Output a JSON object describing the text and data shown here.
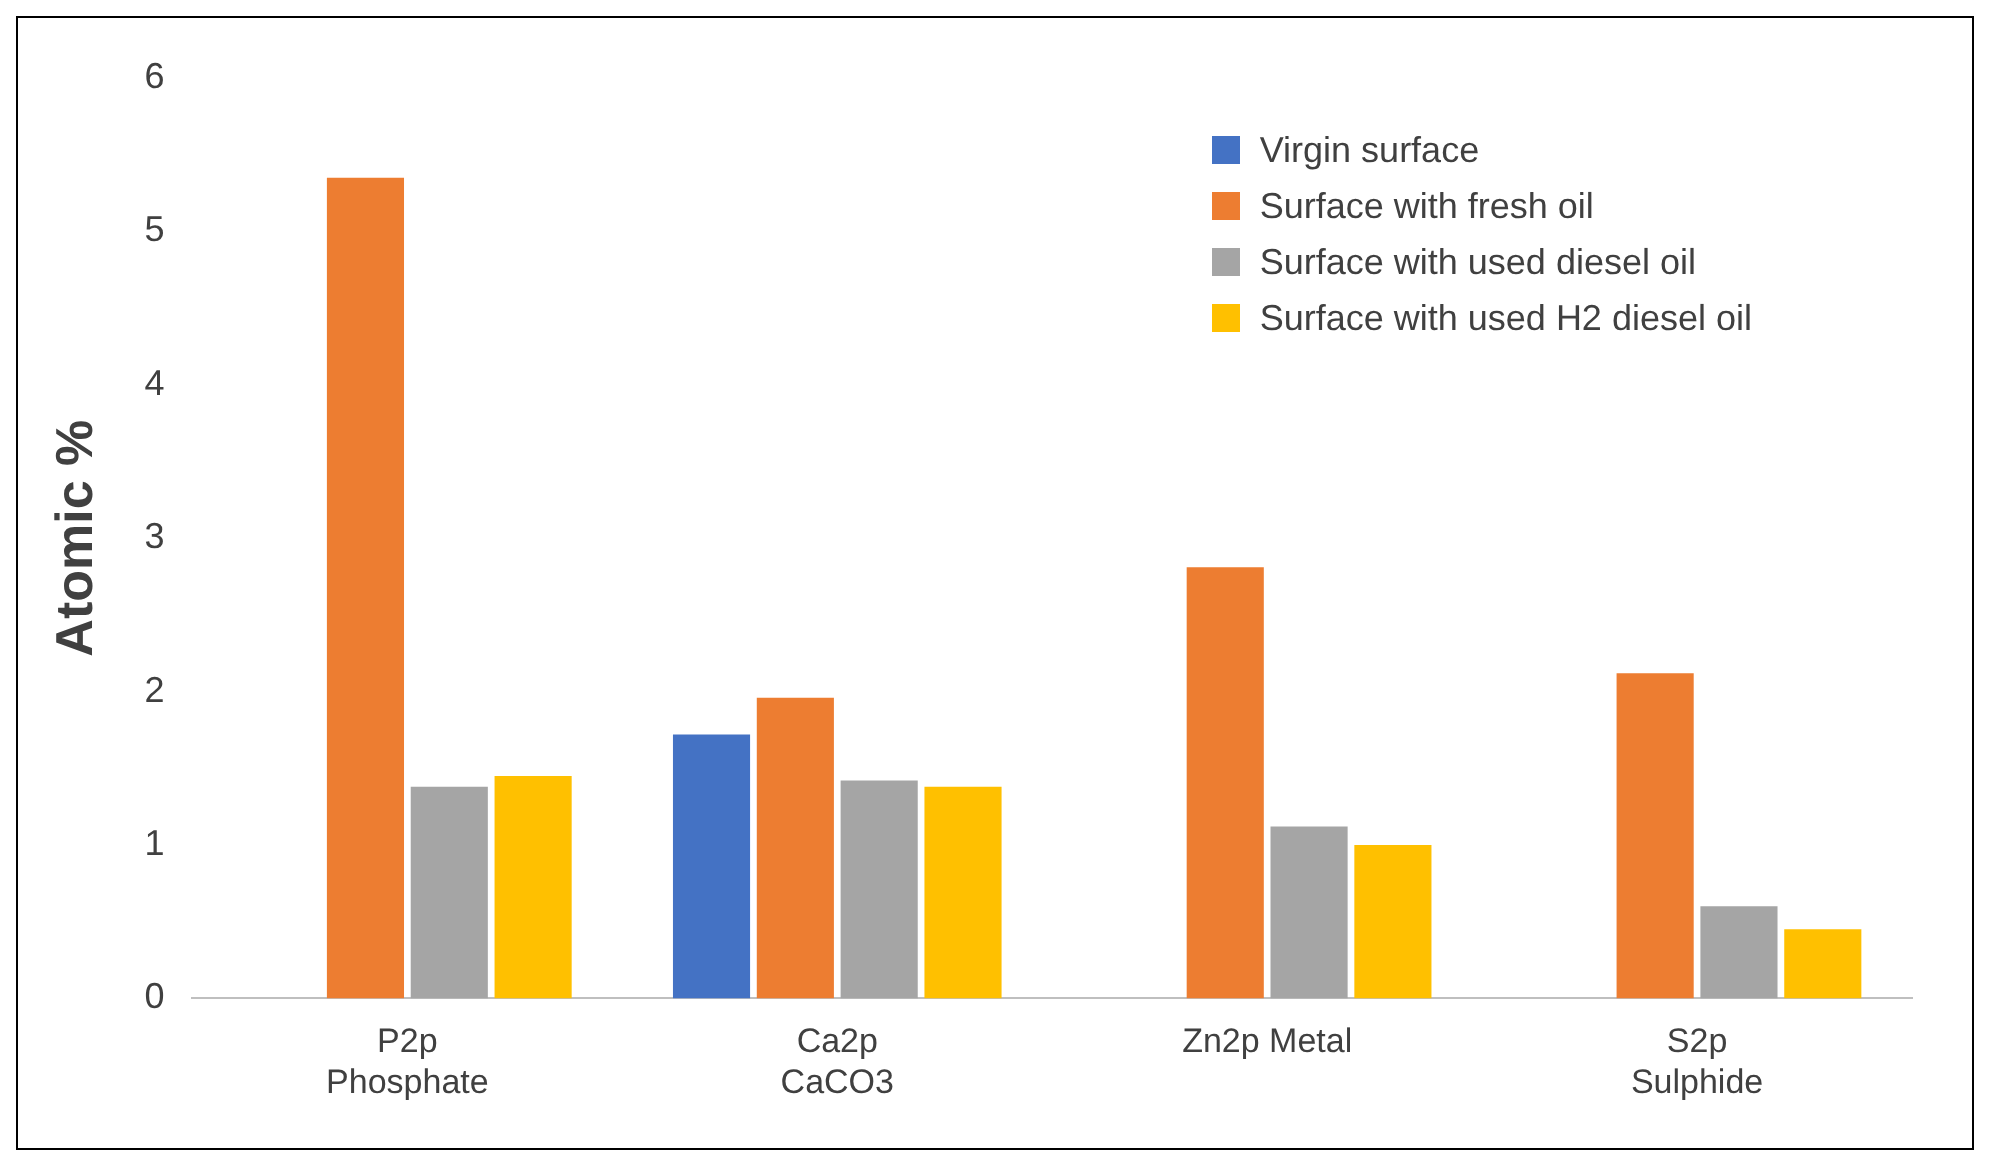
{
  "chart_data": {
    "type": "bar",
    "ylabel": "Atomic %",
    "categories": [
      "P2p\nPhosphate",
      "Ca2p\nCaCO3",
      "Zn2p Metal",
      "S2p\nSulphide"
    ],
    "series": [
      {
        "name": "Virgin surface",
        "color": "#4472c4",
        "values": [
          0,
          1.72,
          0,
          0
        ]
      },
      {
        "name": "Surface with fresh oil",
        "color": "#ed7d31",
        "values": [
          5.35,
          1.96,
          2.81,
          2.12
        ]
      },
      {
        "name": "Surface with used diesel oil",
        "color": "#a5a5a5",
        "values": [
          1.38,
          1.42,
          1.12,
          0.6
        ]
      },
      {
        "name": "Surface with used H2 diesel oil",
        "color": "#ffc000",
        "values": [
          1.45,
          1.38,
          1.0,
          0.45
        ]
      }
    ],
    "ylim": [
      0,
      6
    ],
    "yticks": [
      0,
      1,
      2,
      3,
      4,
      5,
      6
    ],
    "grid": false,
    "legend": "top right"
  }
}
